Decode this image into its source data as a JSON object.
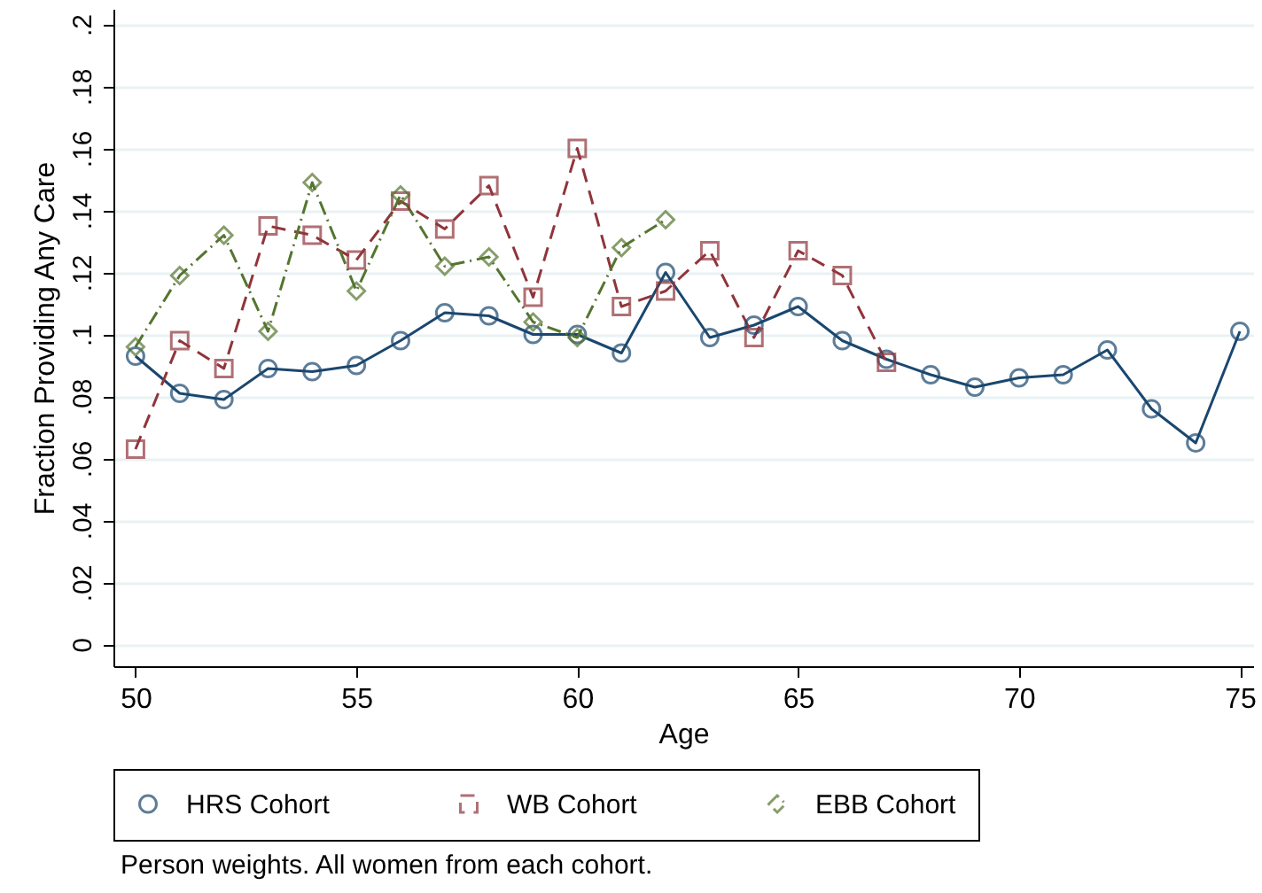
{
  "chart_data": {
    "type": "line",
    "xlabel": "Age",
    "ylabel": "Fraction Providing Any Care",
    "annotations": [
      "Person weights. All women from each cohort."
    ],
    "series": [
      {
        "name": "HRS Cohort",
        "color": "#1a476f",
        "marker": "circle",
        "line_style": "solid",
        "x": [
          50,
          51,
          52,
          53,
          54,
          55,
          56,
          57,
          58,
          59,
          60,
          61,
          62,
          63,
          64,
          65,
          66,
          67,
          68,
          69,
          70,
          71,
          72,
          73,
          74,
          75
        ],
        "values": [
          0.093,
          0.081,
          0.079,
          0.089,
          0.088,
          0.09,
          0.098,
          0.107,
          0.106,
          0.1,
          0.1,
          0.094,
          0.12,
          0.099,
          0.103,
          0.109,
          0.098,
          0.092,
          0.087,
          0.083,
          0.086,
          0.087,
          0.095,
          0.076,
          0.065,
          0.101
        ]
      },
      {
        "name": "WB Cohort",
        "color": "#90353b",
        "marker": "square",
        "line_style": "dashed",
        "x": [
          50,
          51,
          52,
          53,
          54,
          55,
          56,
          57,
          58,
          59,
          60,
          61,
          62,
          63,
          64,
          65,
          66,
          67
        ],
        "values": [
          0.063,
          0.098,
          0.089,
          0.135,
          0.132,
          0.124,
          0.143,
          0.134,
          0.148,
          0.112,
          0.16,
          0.109,
          0.114,
          0.127,
          0.099,
          0.127,
          0.119,
          0.091
        ]
      },
      {
        "name": "EBB Cohort",
        "color": "#55752f",
        "marker": "diamond",
        "line_style": "dashdot",
        "x": [
          50,
          51,
          52,
          53,
          54,
          55,
          56,
          57,
          58,
          59,
          60,
          61,
          62
        ],
        "values": [
          0.096,
          0.119,
          0.132,
          0.101,
          0.149,
          0.114,
          0.145,
          0.122,
          0.125,
          0.104,
          0.099,
          0.128,
          0.137
        ]
      }
    ],
    "xlim": [
      49.5,
      75.3
    ],
    "xticks": [
      50,
      55,
      60,
      65,
      70,
      75
    ],
    "ylim": [
      -0.007,
      0.205
    ],
    "yticks": [
      {
        "value": 0,
        "label": "0"
      },
      {
        "value": 0.02,
        "label": ".02"
      },
      {
        "value": 0.04,
        "label": ".04"
      },
      {
        "value": 0.06,
        "label": ".06"
      },
      {
        "value": 0.08,
        "label": ".08"
      },
      {
        "value": 0.1,
        "label": ".1"
      },
      {
        "value": 0.12,
        "label": ".12"
      },
      {
        "value": 0.14,
        "label": ".14"
      },
      {
        "value": 0.16,
        "label": ".16"
      },
      {
        "value": 0.18,
        "label": ".18"
      },
      {
        "value": 0.2,
        "label": ".2"
      }
    ],
    "grid": "y",
    "legend": "bottom"
  }
}
